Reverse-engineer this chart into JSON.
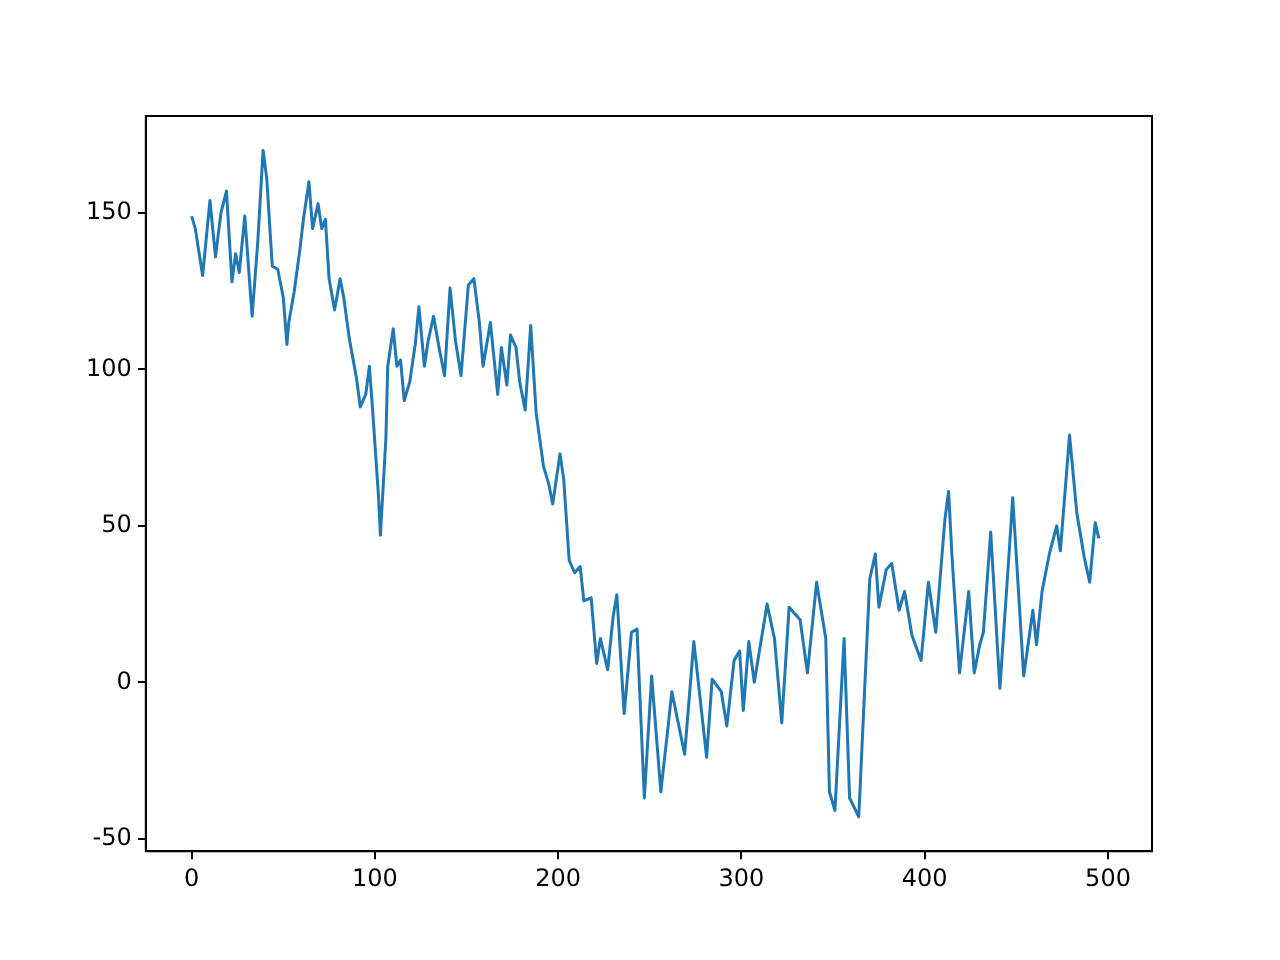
{
  "chart_data": {
    "type": "line",
    "color": "#1f77b4",
    "x": [
      0,
      2,
      6,
      10,
      13,
      16,
      19,
      22,
      24,
      26,
      29,
      33,
      36,
      39,
      41,
      44,
      47,
      50,
      52,
      53,
      56,
      59,
      61,
      64,
      66,
      69,
      71,
      73,
      75,
      78,
      81,
      83,
      86,
      90,
      92,
      95,
      97,
      99,
      102,
      103,
      106,
      107,
      110,
      112,
      114,
      116,
      119,
      122,
      124,
      127,
      129,
      132,
      135,
      138,
      141,
      144,
      147,
      151,
      154,
      157,
      159,
      163,
      167,
      169,
      172,
      174,
      177,
      179,
      182,
      185,
      188,
      192,
      195,
      197,
      201,
      203,
      206,
      209,
      212,
      214,
      218,
      221,
      223,
      227,
      230,
      232,
      236,
      240,
      243,
      247,
      251,
      256,
      260,
      262,
      269,
      274,
      281,
      284,
      289,
      292,
      296,
      299,
      301,
      304,
      307,
      314,
      318,
      322,
      326,
      332,
      336,
      341,
      346,
      348,
      351,
      356,
      359,
      364,
      370,
      373,
      375,
      379,
      382,
      386,
      389,
      393,
      398,
      402,
      406,
      411,
      413,
      415,
      419,
      424,
      427,
      430,
      432,
      436,
      441,
      446,
      448,
      454,
      459,
      461,
      464,
      468,
      472,
      474,
      479,
      483,
      487,
      490,
      493,
      495
    ],
    "values": [
      149,
      145,
      130,
      154,
      136,
      150,
      157,
      128,
      137,
      131,
      149,
      117,
      140,
      170,
      161,
      133,
      132,
      123,
      108,
      115,
      125,
      138,
      148,
      160,
      145,
      153,
      145,
      148,
      129,
      119,
      129,
      123,
      110,
      97,
      88,
      92,
      101,
      85,
      59,
      47,
      78,
      101,
      113,
      101,
      103,
      90,
      96,
      108,
      120,
      101,
      109,
      117,
      107,
      98,
      126,
      109,
      98,
      127,
      129,
      115,
      101,
      115,
      92,
      107,
      95,
      111,
      107,
      96,
      87,
      114,
      86,
      69,
      63,
      57,
      73,
      65,
      39,
      35,
      37,
      26,
      27,
      6,
      14,
      4,
      21,
      28,
      -10,
      16,
      17,
      -37,
      2,
      -35,
      -14,
      -3,
      -23,
      13,
      -24,
      1,
      -3,
      -14,
      7,
      10,
      -9,
      13,
      0,
      25,
      14,
      -13,
      24,
      20,
      3,
      32,
      14,
      -35,
      -41,
      14,
      -37,
      -43,
      33,
      41,
      24,
      36,
      38,
      23,
      29,
      15,
      7,
      32,
      16,
      52,
      61,
      39,
      3,
      29,
      3,
      12,
      16,
      48,
      -2,
      41,
      59,
      2,
      23,
      12,
      29,
      41,
      50,
      42,
      79,
      54,
      40,
      32,
      51,
      46
    ],
    "xlim": [
      -25,
      524
    ],
    "ylim": [
      -54,
      181
    ],
    "xticks": [
      0,
      100,
      200,
      300,
      400,
      500
    ],
    "yticks": [
      -50,
      0,
      50,
      100,
      150
    ]
  }
}
